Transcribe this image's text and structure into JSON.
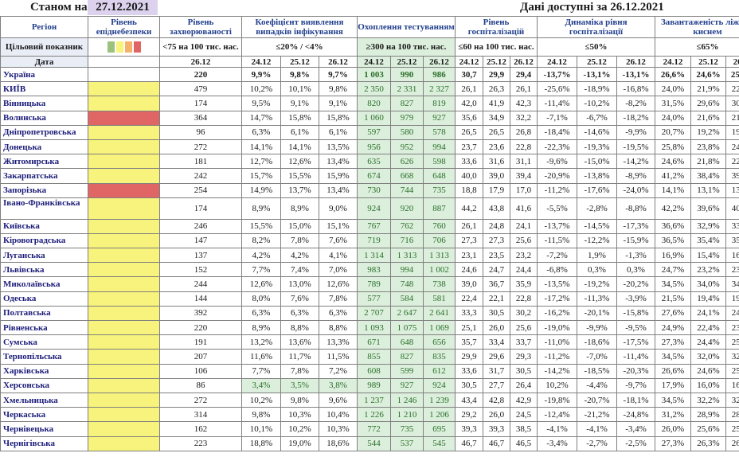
{
  "header": {
    "as_of_label": "Станом на",
    "as_of_date": "27.12.2021",
    "data_available": "Дані доступні за 26.12.2021"
  },
  "columns": {
    "region": "Регіон",
    "danger_level": "Рівень епіднебезпеки",
    "incidence": "Рівень захворюваності",
    "detection": "Коефіцієнт виявлення випадків інфікування",
    "testing": "Охоплення тестуванням",
    "hospitalization": "Рівень госпіталізацій",
    "hosp_dynamics": "Динаміка рівня госпіталізації",
    "oxygen": "Завантаженість ліжок з киснем"
  },
  "target_row": {
    "label": "Цільовий показник",
    "incidence": "<75 на 100 тис. нас.",
    "detection": "≤20% / <4%",
    "testing": "≥300 на 100 тис. нас.",
    "hospitalization": "≤60 на 100 тис. нас.",
    "hosp_dynamics": "≤50%",
    "oxygen": "≤65%"
  },
  "legend_colors": [
    "#9bc27c",
    "#f8f37c",
    "#f6b26b",
    "#e06666"
  ],
  "date_row": {
    "label": "Дата",
    "incidence_date": "26.12",
    "dates": [
      "24.12",
      "25.12",
      "26.12"
    ]
  },
  "rows": [
    {
      "name": "Україна",
      "level": "white",
      "inc": "220",
      "det": [
        "9,9%",
        "9,8%",
        "9,7%"
      ],
      "tst": [
        "1 003",
        "990",
        "986"
      ],
      "hosp": [
        "30,7",
        "29,9",
        "29,4"
      ],
      "dyn": [
        "-13,7%",
        "-13,1%",
        "-13,1%"
      ],
      "oxy": [
        "26,6%",
        "24,6%",
        "25,0%"
      ]
    },
    {
      "name": "КИЇВ",
      "level": "yellow",
      "inc": "479",
      "det": [
        "10,2%",
        "10,1%",
        "9,8%"
      ],
      "tst": [
        "2 350",
        "2 331",
        "2 327"
      ],
      "hosp": [
        "26,1",
        "26,3",
        "26,1"
      ],
      "dyn": [
        "-25,6%",
        "-18,9%",
        "-16,8%"
      ],
      "oxy": [
        "24,0%",
        "21,9%",
        "22,4%"
      ]
    },
    {
      "name": "Вінницька",
      "level": "yellow",
      "inc": "174",
      "det": [
        "9,5%",
        "9,1%",
        "9,1%"
      ],
      "tst": [
        "820",
        "827",
        "819"
      ],
      "hosp": [
        "42,0",
        "41,9",
        "42,3"
      ],
      "dyn": [
        "-11,4%",
        "-10,2%",
        "-8,2%"
      ],
      "oxy": [
        "31,5%",
        "29,6%",
        "30,8%"
      ]
    },
    {
      "name": "Волинська",
      "level": "red",
      "inc": "364",
      "det": [
        "14,7%",
        "15,8%",
        "15,8%"
      ],
      "tst": [
        "1 060",
        "979",
        "927"
      ],
      "hosp": [
        "35,6",
        "34,9",
        "32,2"
      ],
      "dyn": [
        "-7,1%",
        "-6,7%",
        "-18,2%"
      ],
      "oxy": [
        "24,0%",
        "21,6%",
        "21,8%"
      ]
    },
    {
      "name": "Дніпропетровська",
      "level": "yellow",
      "inc": "96",
      "det": [
        "6,3%",
        "6,1%",
        "6,1%"
      ],
      "tst": [
        "597",
        "580",
        "578"
      ],
      "hosp": [
        "26,5",
        "26,5",
        "26,8"
      ],
      "dyn": [
        "-18,4%",
        "-14,6%",
        "-9,9%"
      ],
      "oxy": [
        "20,7%",
        "19,2%",
        "19,8%"
      ]
    },
    {
      "name": "Донецька",
      "level": "yellow",
      "inc": "272",
      "det": [
        "14,1%",
        "14,1%",
        "13,5%"
      ],
      "tst": [
        "956",
        "952",
        "994"
      ],
      "hosp": [
        "23,7",
        "23,6",
        "22,8"
      ],
      "dyn": [
        "-22,3%",
        "-19,3%",
        "-19,5%"
      ],
      "oxy": [
        "25,8%",
        "23,8%",
        "24,0%"
      ]
    },
    {
      "name": "Житомирська",
      "level": "yellow",
      "inc": "181",
      "det": [
        "12,7%",
        "12,6%",
        "13,4%"
      ],
      "tst": [
        "635",
        "626",
        "598"
      ],
      "hosp": [
        "33,6",
        "31,6",
        "31,1"
      ],
      "dyn": [
        "-9,6%",
        "-15,0%",
        "-14,2%"
      ],
      "oxy": [
        "24,6%",
        "21,8%",
        "22,5%"
      ]
    },
    {
      "name": "Закарпатська",
      "level": "yellow",
      "inc": "242",
      "det": [
        "15,7%",
        "15,5%",
        "15,9%"
      ],
      "tst": [
        "674",
        "668",
        "648"
      ],
      "hosp": [
        "40,0",
        "39,0",
        "39,4"
      ],
      "dyn": [
        "-20,9%",
        "-13,8%",
        "-8,9%"
      ],
      "oxy": [
        "41,2%",
        "38,4%",
        "39,3%"
      ]
    },
    {
      "name": "Запорізька",
      "level": "red",
      "inc": "254",
      "det": [
        "14,9%",
        "13,7%",
        "13,4%"
      ],
      "tst": [
        "730",
        "744",
        "735"
      ],
      "hosp": [
        "18,8",
        "17,9",
        "17,0"
      ],
      "dyn": [
        "-11,2%",
        "-17,6%",
        "-24,0%"
      ],
      "oxy": [
        "14,1%",
        "13,1%",
        "13,5%"
      ]
    },
    {
      "name": "Івано-Франківська",
      "level": "yellow",
      "inc": "174",
      "det": [
        "8,9%",
        "8,9%",
        "9,0%"
      ],
      "tst": [
        "924",
        "920",
        "887"
      ],
      "hosp": [
        "44,2",
        "43,8",
        "41,6"
      ],
      "dyn": [
        "-5,5%",
        "-2,8%",
        "-8,8%"
      ],
      "oxy": [
        "42,2%",
        "39,6%",
        "40,1%"
      ],
      "tall": true
    },
    {
      "name": "Київська",
      "level": "yellow",
      "inc": "246",
      "det": [
        "15,5%",
        "15,0%",
        "15,1%"
      ],
      "tst": [
        "767",
        "762",
        "760"
      ],
      "hosp": [
        "26,1",
        "24,8",
        "24,1"
      ],
      "dyn": [
        "-13,7%",
        "-14,5%",
        "-17,3%"
      ],
      "oxy": [
        "36,6%",
        "32,9%",
        "33,7%"
      ]
    },
    {
      "name": "Кіровоградська",
      "level": "yellow",
      "inc": "147",
      "det": [
        "8,2%",
        "7,8%",
        "7,6%"
      ],
      "tst": [
        "719",
        "716",
        "706"
      ],
      "hosp": [
        "27,3",
        "27,3",
        "25,6"
      ],
      "dyn": [
        "-11,5%",
        "-12,2%",
        "-15,9%"
      ],
      "oxy": [
        "36,5%",
        "35,4%",
        "35,1%"
      ]
    },
    {
      "name": "Луганська",
      "level": "yellow",
      "inc": "137",
      "det": [
        "4,2%",
        "4,2%",
        "4,1%"
      ],
      "tst": [
        "1 314",
        "1 313",
        "1 313"
      ],
      "hosp": [
        "23,1",
        "23,5",
        "23,2"
      ],
      "dyn": [
        "-7,2%",
        "1,9%",
        "-1,3%"
      ],
      "oxy": [
        "16,9%",
        "15,4%",
        "16,1%"
      ]
    },
    {
      "name": "Львівська",
      "level": "yellow",
      "inc": "152",
      "det": [
        "7,7%",
        "7,4%",
        "7,0%"
      ],
      "tst": [
        "983",
        "994",
        "1 002"
      ],
      "hosp": [
        "24,6",
        "24,7",
        "24,4"
      ],
      "dyn": [
        "-6,8%",
        "0,3%",
        "0,3%"
      ],
      "oxy": [
        "24,7%",
        "23,2%",
        "23,2%"
      ]
    },
    {
      "name": "Миколаївська",
      "level": "yellow",
      "inc": "244",
      "det": [
        "12,6%",
        "13,0%",
        "12,6%"
      ],
      "tst": [
        "789",
        "748",
        "738"
      ],
      "hosp": [
        "39,0",
        "36,7",
        "35,9"
      ],
      "dyn": [
        "-13,5%",
        "-19,2%",
        "-20,2%"
      ],
      "oxy": [
        "34,5%",
        "34,0%",
        "34,3%"
      ]
    },
    {
      "name": "Одеська",
      "level": "yellow",
      "inc": "144",
      "det": [
        "8,0%",
        "7,6%",
        "7,8%"
      ],
      "tst": [
        "577",
        "584",
        "581"
      ],
      "hosp": [
        "22,4",
        "22,1",
        "22,8"
      ],
      "dyn": [
        "-17,2%",
        "-11,3%",
        "-3,9%"
      ],
      "oxy": [
        "21,5%",
        "19,4%",
        "19,8%"
      ]
    },
    {
      "name": "Полтавська",
      "level": "yellow",
      "inc": "392",
      "det": [
        "6,3%",
        "6,3%",
        "6,3%"
      ],
      "tst": [
        "2 707",
        "2 647",
        "2 641"
      ],
      "hosp": [
        "33,3",
        "30,5",
        "30,2"
      ],
      "dyn": [
        "-16,2%",
        "-20,1%",
        "-15,8%"
      ],
      "oxy": [
        "27,6%",
        "24,1%",
        "24,5%"
      ]
    },
    {
      "name": "Рівненська",
      "level": "yellow",
      "inc": "220",
      "det": [
        "8,9%",
        "8,8%",
        "8,8%"
      ],
      "tst": [
        "1 093",
        "1 075",
        "1 069"
      ],
      "hosp": [
        "25,1",
        "26,0",
        "25,6"
      ],
      "dyn": [
        "-19,0%",
        "-9,9%",
        "-9,5%"
      ],
      "oxy": [
        "24,9%",
        "22,4%",
        "23,2%"
      ]
    },
    {
      "name": "Сумська",
      "level": "yellow",
      "inc": "191",
      "det": [
        "13,2%",
        "13,6%",
        "13,3%"
      ],
      "tst": [
        "671",
        "648",
        "656"
      ],
      "hosp": [
        "35,7",
        "33,4",
        "33,7"
      ],
      "dyn": [
        "-11,0%",
        "-18,6%",
        "-17,5%"
      ],
      "oxy": [
        "27,3%",
        "24,4%",
        "25,3%"
      ]
    },
    {
      "name": "Тернопільська",
      "level": "yellow",
      "inc": "207",
      "det": [
        "11,6%",
        "11,7%",
        "11,5%"
      ],
      "tst": [
        "855",
        "827",
        "835"
      ],
      "hosp": [
        "29,9",
        "29,6",
        "29,3"
      ],
      "dyn": [
        "-11,2%",
        "-7,0%",
        "-11,4%"
      ],
      "oxy": [
        "34,5%",
        "32,0%",
        "32,3%"
      ]
    },
    {
      "name": "Харківська",
      "level": "yellow",
      "inc": "106",
      "det": [
        "7,7%",
        "7,8%",
        "7,2%"
      ],
      "tst": [
        "608",
        "599",
        "612"
      ],
      "hosp": [
        "33,6",
        "31,7",
        "30,5"
      ],
      "dyn": [
        "-14,2%",
        "-18,5%",
        "-20,3%"
      ],
      "oxy": [
        "26,6%",
        "24,6%",
        "25,3%"
      ]
    },
    {
      "name": "Херсонська",
      "level": "yellow",
      "inc": "86",
      "det": [
        "3,4%",
        "3,5%",
        "3,8%"
      ],
      "det_green": true,
      "tst": [
        "989",
        "927",
        "924"
      ],
      "hosp": [
        "30,5",
        "27,7",
        "26,4"
      ],
      "dyn": [
        "10,2%",
        "-4,4%",
        "-9,7%"
      ],
      "oxy": [
        "17,9%",
        "16,0%",
        "16,7%"
      ]
    },
    {
      "name": "Хмельницька",
      "level": "yellow",
      "inc": "272",
      "det": [
        "10,2%",
        "9,8%",
        "9,6%"
      ],
      "tst": [
        "1 237",
        "1 246",
        "1 239"
      ],
      "hosp": [
        "43,4",
        "42,8",
        "42,9"
      ],
      "dyn": [
        "-19,8%",
        "-20,7%",
        "-18,1%"
      ],
      "oxy": [
        "34,5%",
        "32,2%",
        "32,6%"
      ]
    },
    {
      "name": "Черкаська",
      "level": "yellow",
      "inc": "314",
      "det": [
        "9,8%",
        "10,3%",
        "10,4%"
      ],
      "tst": [
        "1 226",
        "1 210",
        "1 206"
      ],
      "hosp": [
        "29,2",
        "26,0",
        "24,5"
      ],
      "dyn": [
        "-12,4%",
        "-21,2%",
        "-24,8%"
      ],
      "oxy": [
        "31,2%",
        "28,9%",
        "28,2%"
      ]
    },
    {
      "name": "Чернівецька",
      "level": "yellow",
      "inc": "162",
      "det": [
        "10,1%",
        "10,2%",
        "10,3%"
      ],
      "tst": [
        "772",
        "735",
        "695"
      ],
      "hosp": [
        "39,3",
        "39,3",
        "38,5"
      ],
      "dyn": [
        "-4,1%",
        "-4,1%",
        "-3,4%"
      ],
      "oxy": [
        "26,0%",
        "25,6%",
        "25,6%"
      ]
    },
    {
      "name": "Чернігівська",
      "level": "yellow",
      "inc": "223",
      "det": [
        "18,8%",
        "19,0%",
        "18,6%"
      ],
      "tst": [
        "544",
        "537",
        "545"
      ],
      "hosp": [
        "46,7",
        "46,7",
        "46,5"
      ],
      "dyn": [
        "-3,4%",
        "-2,7%",
        "-2,5%"
      ],
      "oxy": [
        "27,3%",
        "26,3%",
        "26,1%"
      ]
    }
  ]
}
